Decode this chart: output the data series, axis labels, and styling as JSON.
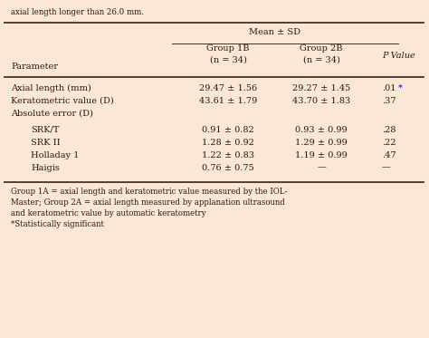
{
  "background_color": "#fae8d4",
  "top_text": "axial length longer than 26.0 mm.",
  "header_main": "Mean ± SD",
  "param_header": "Parameter",
  "rows": [
    {
      "param": "Axial length (mm)",
      "g1": "29.47 ± 1.56",
      "g2": "29.27 ± 1.45",
      "pval": ".01",
      "pval_star": true,
      "indent": false
    },
    {
      "param": "Keratometric value (D)",
      "g1": "43.61 ± 1.79",
      "g2": "43.70 ± 1.83",
      "pval": ".37",
      "pval_star": false,
      "indent": false
    },
    {
      "param": "Absolute error (D)",
      "g1": "",
      "g2": "",
      "pval": "",
      "pval_star": false,
      "indent": false
    },
    {
      "param": "SRK/T",
      "g1": "0.91 ± 0.82",
      "g2": "0.93 ± 0.99",
      "pval": ".28",
      "pval_star": false,
      "indent": true
    },
    {
      "param": "SRK II",
      "g1": "1.28 ± 0.92",
      "g2": "1.29 ± 0.99",
      "pval": ".22",
      "pval_star": false,
      "indent": true
    },
    {
      "param": "Holladay 1",
      "g1": "1.22 ± 0.83",
      "g2": "1.19 ± 0.99",
      "pval": ".47",
      "pval_star": false,
      "indent": true
    },
    {
      "param": "Haigis",
      "g1": "0.76 ± 0.75",
      "g2": "—",
      "pval": "—",
      "pval_star": false,
      "indent": true
    }
  ],
  "footnote_lines": [
    "Group 1A = axial length and keratometric value measured by the IOL-",
    "Master; Group 2A = axial length measured by applanation ultrasound",
    "and keratometric value by automatic keratometry",
    "*Statistically significant"
  ],
  "text_color": "#2b1a0a",
  "star_color": "#0000cc",
  "line_color": "#4a3020",
  "fig_w": 4.74,
  "fig_h": 3.73,
  "dpi": 100
}
